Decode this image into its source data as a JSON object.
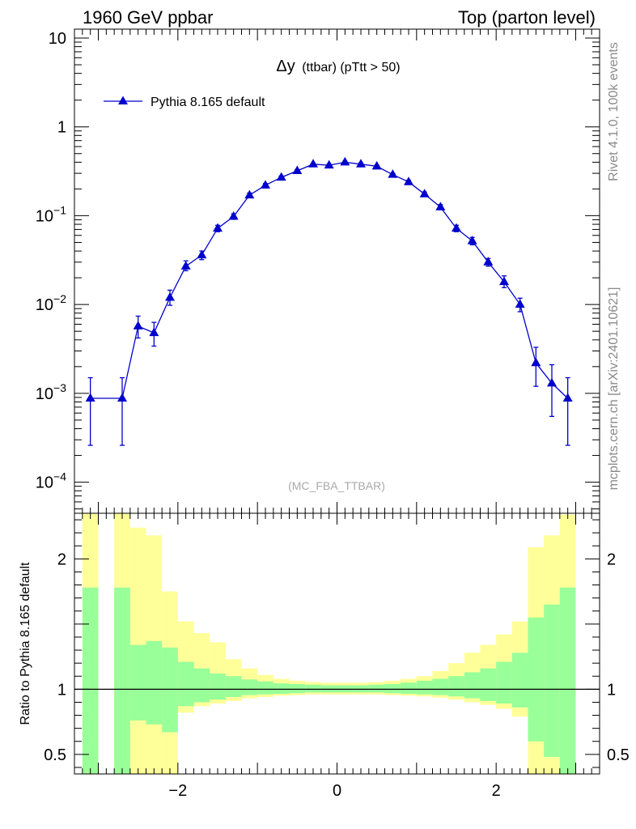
{
  "header": {
    "left": "1960 GeV ppbar",
    "right": "Top (parton level)"
  },
  "side_labels": {
    "rivet": "Rivet 4.1.0,  100k events",
    "mcplots": "mcplots.cern.ch [arXiv:2401.10621]"
  },
  "chart_data": [
    {
      "type": "line",
      "title_main": "Δy",
      "title_sub": "(ttbar) (pTtt > 50)",
      "watermark": "(MC_FBA_TTBAR)",
      "yscale": "log",
      "xlim": [
        -3.3,
        3.3
      ],
      "ylim_exp": [
        -4.35,
        1.1
      ],
      "yticks": [
        {
          "v": 10,
          "label": "10"
        },
        {
          "v": 1,
          "label": "1"
        },
        {
          "v": 0.1,
          "label": "10",
          "sup": "−1"
        },
        {
          "v": 0.01,
          "label": "10",
          "sup": "−2"
        },
        {
          "v": 0.001,
          "label": "10",
          "sup": "−3"
        },
        {
          "v": 0.0001,
          "label": "10",
          "sup": "−4"
        }
      ],
      "legend": {
        "position": "top-left",
        "label": "Pythia 8.165 default"
      },
      "series": [
        {
          "name": "Pythia 8.165 default",
          "color": "#0000cc",
          "x": [
            -3.1,
            -2.7,
            -2.5,
            -2.3,
            -2.1,
            -1.9,
            -1.7,
            -1.5,
            -1.3,
            -1.1,
            -0.9,
            -0.7,
            -0.5,
            -0.3,
            -0.1,
            0.1,
            0.3,
            0.5,
            0.7,
            0.9,
            1.1,
            1.3,
            1.5,
            1.7,
            1.9,
            2.1,
            2.3,
            2.5,
            2.7,
            2.9
          ],
          "y": [
            0.00088,
            0.00088,
            0.0057,
            0.0048,
            0.012,
            0.027,
            0.036,
            0.072,
            0.098,
            0.17,
            0.22,
            0.27,
            0.32,
            0.38,
            0.37,
            0.4,
            0.38,
            0.36,
            0.29,
            0.24,
            0.175,
            0.125,
            0.072,
            0.052,
            0.03,
            0.018,
            0.01,
            0.0022,
            0.0013,
            0.00088
          ],
          "ylo": [
            0.00026,
            0.00026,
            0.0042,
            0.0034,
            0.0098,
            0.024,
            0.032,
            0.066,
            0.091,
            0.162,
            0.21,
            0.26,
            0.31,
            0.37,
            0.36,
            0.39,
            0.37,
            0.35,
            0.28,
            0.23,
            0.166,
            0.117,
            0.066,
            0.047,
            0.027,
            0.0155,
            0.0083,
            0.0012,
            0.00055,
            0.00026
          ],
          "yhi": [
            0.0015,
            0.0015,
            0.0074,
            0.0063,
            0.0145,
            0.031,
            0.04,
            0.078,
            0.105,
            0.18,
            0.23,
            0.28,
            0.33,
            0.39,
            0.38,
            0.41,
            0.39,
            0.37,
            0.3,
            0.25,
            0.185,
            0.133,
            0.078,
            0.057,
            0.033,
            0.021,
            0.0118,
            0.0033,
            0.0021,
            0.0015
          ]
        }
      ]
    },
    {
      "type": "area",
      "ylabel": "Ratio to Pythia 8.165 default",
      "xlim": [
        -3.3,
        3.3
      ],
      "ylim": [
        0.35,
        2.35
      ],
      "xticks": [
        {
          "v": -2,
          "label": "−2"
        },
        {
          "v": 0,
          "label": "0"
        },
        {
          "v": 2,
          "label": "2"
        }
      ],
      "yticks": [
        {
          "v": 2,
          "label": "2"
        },
        {
          "v": 1,
          "label": "1"
        },
        {
          "v": 0.5,
          "label": "0.5"
        }
      ],
      "reference_line": 1,
      "bin_edges": [
        -3.2,
        -3.0,
        -2.8,
        -2.6,
        -2.4,
        -2.2,
        -2.0,
        -1.8,
        -1.6,
        -1.4,
        -1.2,
        -1.0,
        -0.8,
        -0.6,
        -0.4,
        -0.2,
        0.0,
        0.2,
        0.4,
        0.6,
        0.8,
        1.0,
        1.2,
        1.4,
        1.6,
        1.8,
        2.0,
        2.2,
        2.4,
        2.6,
        2.8,
        3.0
      ],
      "bands": [
        {
          "name": "outer",
          "color": "#ffff99",
          "lo": [
            0.0,
            null,
            0.0,
            0.0,
            0.0,
            0.0,
            0.82,
            0.87,
            0.89,
            0.91,
            0.93,
            0.94,
            0.95,
            0.955,
            0.96,
            0.96,
            0.96,
            0.96,
            0.96,
            0.955,
            0.95,
            0.945,
            0.935,
            0.92,
            0.9,
            0.88,
            0.85,
            0.79,
            0.0,
            0.0,
            0.0
          ],
          "hi": [
            2.4,
            null,
            2.4,
            2.24,
            2.18,
            1.75,
            1.52,
            1.43,
            1.36,
            1.23,
            1.16,
            1.11,
            1.08,
            1.065,
            1.055,
            1.05,
            1.05,
            1.05,
            1.055,
            1.065,
            1.08,
            1.1,
            1.14,
            1.2,
            1.28,
            1.34,
            1.42,
            1.52,
            2.09,
            2.18,
            2.34
          ]
        },
        {
          "name": "inner",
          "color": "#99ff99",
          "lo": [
            0.0,
            null,
            0.0,
            0.76,
            0.73,
            0.67,
            0.87,
            0.9,
            0.92,
            0.94,
            0.955,
            0.96,
            0.965,
            0.97,
            0.975,
            0.975,
            0.975,
            0.975,
            0.975,
            0.97,
            0.965,
            0.96,
            0.955,
            0.945,
            0.93,
            0.91,
            0.89,
            0.86,
            0.6,
            0.48,
            0.0
          ],
          "hi": [
            1.78,
            null,
            1.78,
            1.34,
            1.37,
            1.32,
            1.21,
            1.16,
            1.12,
            1.1,
            1.075,
            1.06,
            1.045,
            1.04,
            1.035,
            1.03,
            1.03,
            1.03,
            1.035,
            1.04,
            1.05,
            1.065,
            1.08,
            1.1,
            1.13,
            1.16,
            1.21,
            1.28,
            1.55,
            1.65,
            1.78
          ]
        }
      ]
    }
  ]
}
